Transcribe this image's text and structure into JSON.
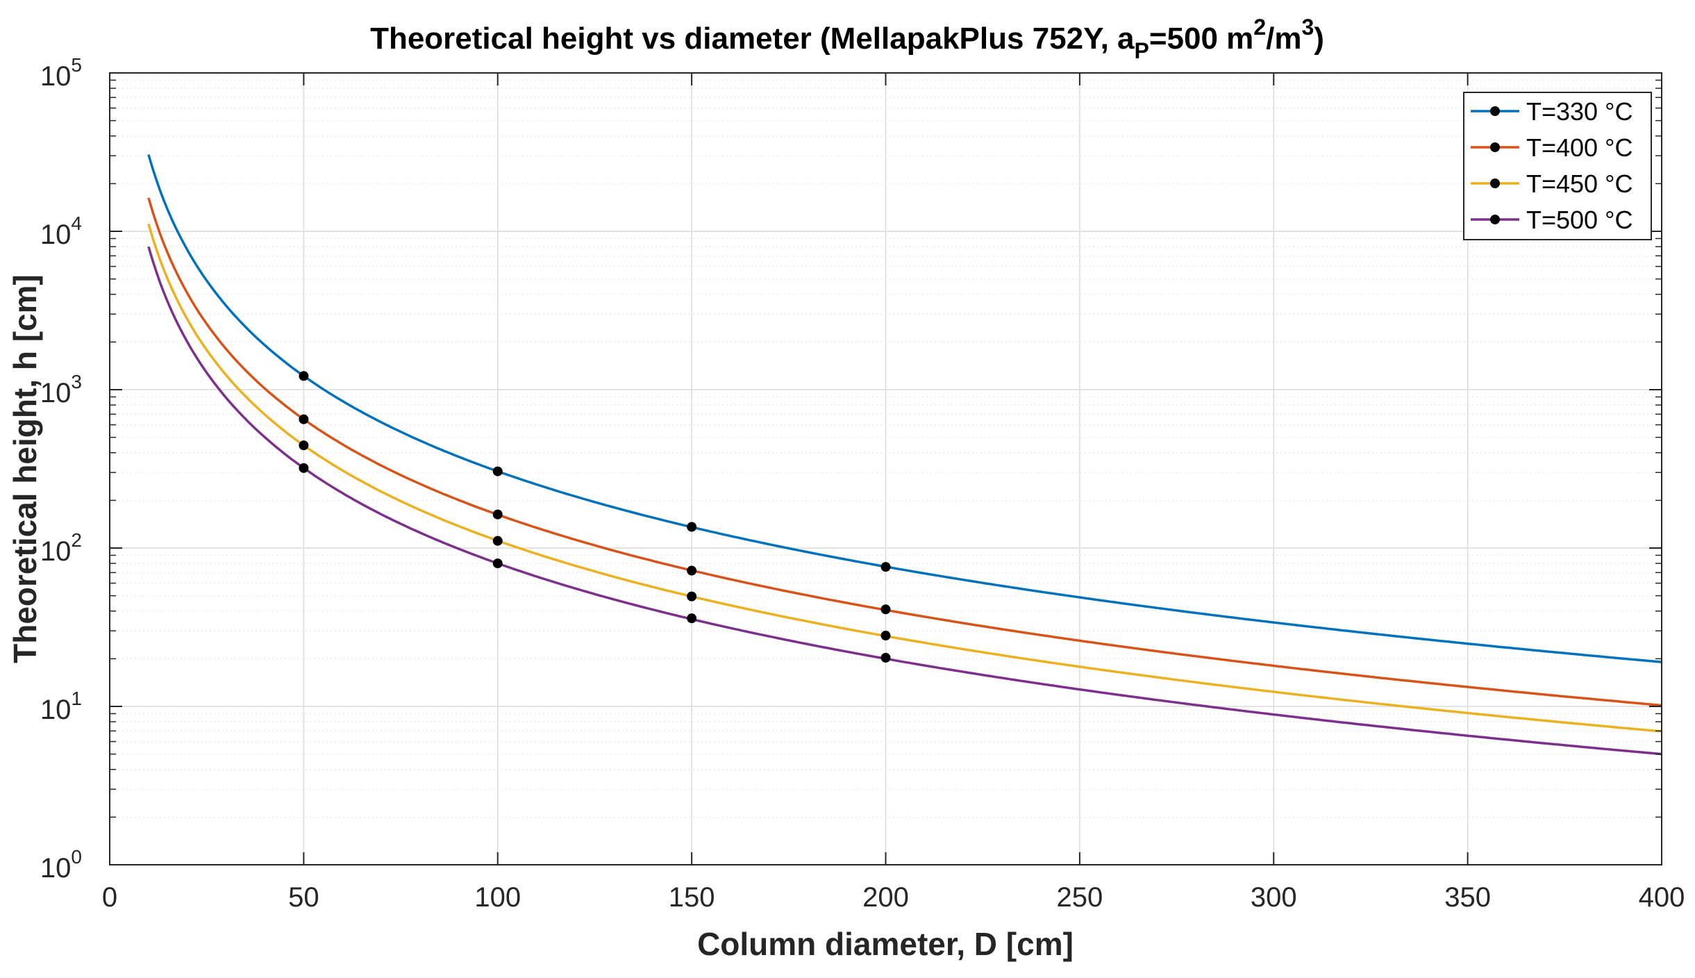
{
  "chart_data": {
    "type": "line",
    "title_parts": {
      "main": "Theoretical height vs diameter (MellapakPlus 752Y, a",
      "sub": "P",
      "mid": "=500 m",
      "sup1": "2",
      "slash": "/m",
      "sup2": "3",
      "end": ")"
    },
    "xlabel": "Column diameter, D [cm]",
    "ylabel": "Theoretical height, h [cm]",
    "xlim": [
      0,
      400
    ],
    "ylim": [
      1,
      100000
    ],
    "yscale": "log",
    "grid": true,
    "x_ticks": [
      {
        "value": 0,
        "label": "0"
      },
      {
        "value": 50,
        "label": "50"
      },
      {
        "value": 100,
        "label": "100"
      },
      {
        "value": 150,
        "label": "150"
      },
      {
        "value": 200,
        "label": "200"
      },
      {
        "value": 250,
        "label": "250"
      },
      {
        "value": 300,
        "label": "300"
      },
      {
        "value": 350,
        "label": "350"
      },
      {
        "value": 400,
        "label": "400"
      }
    ],
    "y_ticks": [
      {
        "value": 1,
        "base": "10",
        "exp": "0"
      },
      {
        "value": 10,
        "base": "10",
        "exp": "1"
      },
      {
        "value": 100,
        "base": "10",
        "exp": "2"
      },
      {
        "value": 1000,
        "base": "10",
        "exp": "3"
      },
      {
        "value": 10000,
        "base": "10",
        "exp": "4"
      },
      {
        "value": 100000,
        "base": "10",
        "exp": "5"
      }
    ],
    "legend_position": "top-right",
    "marker_x": [
      50,
      100,
      150,
      200
    ],
    "series": [
      {
        "name": "T=330 °C",
        "color": "#0072BD",
        "x_start": 10,
        "x_end": 400,
        "h_at_50": 1220,
        "markers": [
          1220,
          305,
          136,
          76
        ]
      },
      {
        "name": "T=400 °C",
        "color": "#D95319",
        "x_start": 10,
        "x_end": 400,
        "h_at_50": 650,
        "markers": [
          650,
          163,
          72,
          41
        ]
      },
      {
        "name": "T=450 °C",
        "color": "#EDB120",
        "x_start": 10,
        "x_end": 400,
        "h_at_50": 445,
        "markers": [
          445,
          111,
          49.5,
          28
        ]
      },
      {
        "name": "T=500 °C",
        "color": "#7E2F8E",
        "x_start": 10,
        "x_end": 400,
        "h_at_50": 320,
        "markers": [
          320,
          80,
          36,
          20.3
        ]
      }
    ]
  }
}
